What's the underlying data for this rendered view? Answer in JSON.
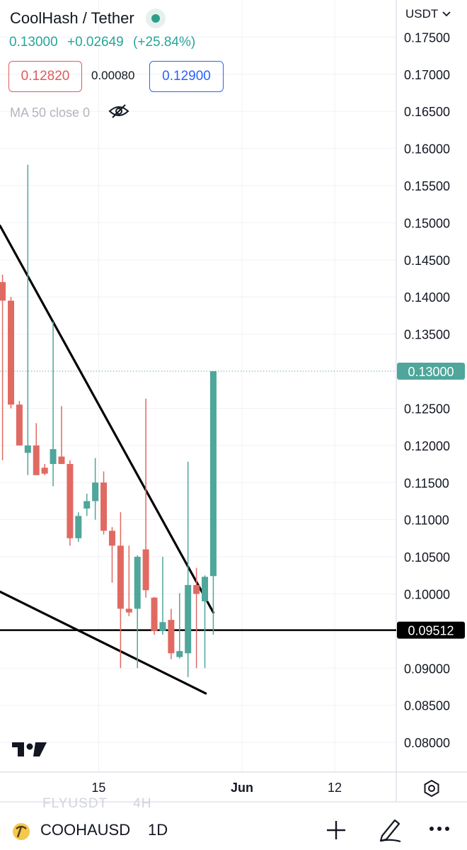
{
  "header": {
    "symbol_title": "CoolHash / Tether",
    "last_price": "0.13000",
    "change": "+0.02649",
    "change_pct": "(+25.84%)",
    "sell_price": "0.12820",
    "spread": "0.00080",
    "buy_price": "0.12900",
    "indicator": "MA 50 close 0"
  },
  "axis": {
    "currency": "USDT"
  },
  "watermark": {
    "symbol": "FLYUSDT",
    "timeframe": "4H"
  },
  "bottom_bar": {
    "symbol": "COOHAUSDT",
    "timeframe": "1D"
  },
  "colors": {
    "up": "#4fa69a",
    "down": "#e06a62",
    "accent": "#2962ff",
    "sell": "#e05a5a"
  },
  "icons": [
    "live-status-icon",
    "eye-hidden-icon",
    "chevron-down-icon",
    "tradingview-logo-icon",
    "settings-gear-icon",
    "pickaxe-icon",
    "plus-icon",
    "pencil-icon",
    "more-icon"
  ],
  "chart_data": {
    "type": "candlestick",
    "y_ticks": [
      0.175,
      0.17,
      0.165,
      0.16,
      0.155,
      0.15,
      0.145,
      0.14,
      0.135,
      0.13,
      0.125,
      0.12,
      0.115,
      0.11,
      0.105,
      0.1,
      0.09,
      0.085,
      0.08
    ],
    "ylim": [
      0.076,
      0.18
    ],
    "x_tick_labels": [
      "15",
      "Jun",
      "12"
    ],
    "x_tick_days": [
      15,
      32,
      43
    ],
    "xlim_days": [
      3.3,
      50.3
    ],
    "grid": true,
    "last_price_label": "0.13000",
    "hline_label": "0.09512",
    "hline_value": 0.09512,
    "candles": [
      {
        "day": 3.6,
        "o": 0.142,
        "h": 0.143,
        "l": 0.118,
        "c": 0.1395
      },
      {
        "day": 4.6,
        "o": 0.1395,
        "h": 0.14,
        "l": 0.125,
        "c": 0.1255
      },
      {
        "day": 5.6,
        "o": 0.1255,
        "h": 0.126,
        "l": 0.12,
        "c": 0.12
      },
      {
        "day": 6.6,
        "o": 0.119,
        "h": 0.1578,
        "l": 0.116,
        "c": 0.12
      },
      {
        "day": 7.6,
        "o": 0.12,
        "h": 0.123,
        "l": 0.116,
        "c": 0.116
      },
      {
        "day": 8.6,
        "o": 0.117,
        "h": 0.1175,
        "l": 0.116,
        "c": 0.1162
      },
      {
        "day": 9.6,
        "o": 0.1175,
        "h": 0.1367,
        "l": 0.1145,
        "c": 0.1195
      },
      {
        "day": 10.6,
        "o": 0.1185,
        "h": 0.1253,
        "l": 0.1175,
        "c": 0.1175
      },
      {
        "day": 11.6,
        "o": 0.1175,
        "h": 0.118,
        "l": 0.1065,
        "c": 0.1075
      },
      {
        "day": 12.6,
        "o": 0.1075,
        "h": 0.111,
        "l": 0.107,
        "c": 0.1105
      },
      {
        "day": 13.6,
        "o": 0.1115,
        "h": 0.1135,
        "l": 0.1105,
        "c": 0.1125
      },
      {
        "day": 14.6,
        "o": 0.1125,
        "h": 0.1183,
        "l": 0.11,
        "c": 0.115
      },
      {
        "day": 15.6,
        "o": 0.115,
        "h": 0.1165,
        "l": 0.108,
        "c": 0.1085
      },
      {
        "day": 16.6,
        "o": 0.1085,
        "h": 0.109,
        "l": 0.1015,
        "c": 0.1065
      },
      {
        "day": 17.6,
        "o": 0.1065,
        "h": 0.111,
        "l": 0.09,
        "c": 0.098
      },
      {
        "day": 18.6,
        "o": 0.098,
        "h": 0.1065,
        "l": 0.097,
        "c": 0.0975
      },
      {
        "day": 19.6,
        "o": 0.098,
        "h": 0.1052,
        "l": 0.09,
        "c": 0.105
      },
      {
        "day": 20.6,
        "o": 0.106,
        "h": 0.1263,
        "l": 0.0995,
        "c": 0.1005
      },
      {
        "day": 21.6,
        "o": 0.0995,
        "h": 0.0996,
        "l": 0.0945,
        "c": 0.095
      },
      {
        "day": 22.6,
        "o": 0.095,
        "h": 0.105,
        "l": 0.0945,
        "c": 0.0962
      },
      {
        "day": 23.6,
        "o": 0.0965,
        "h": 0.098,
        "l": 0.0912,
        "c": 0.092
      },
      {
        "day": 24.6,
        "o": 0.0915,
        "h": 0.1001,
        "l": 0.0913,
        "c": 0.0923
      },
      {
        "day": 25.6,
        "o": 0.092,
        "h": 0.1178,
        "l": 0.0888,
        "c": 0.1012
      },
      {
        "day": 26.6,
        "o": 0.1012,
        "h": 0.1035,
        "l": 0.09,
        "c": 0.1
      },
      {
        "day": 27.6,
        "o": 0.099,
        "h": 0.1025,
        "l": 0.09,
        "c": 0.1023
      },
      {
        "day": 28.6,
        "o": 0.1024,
        "h": 0.13,
        "l": 0.0945,
        "c": 0.13
      }
    ],
    "trendlines": [
      {
        "name": "upper",
        "p1": {
          "day": 3.3,
          "v": 0.1496
        },
        "p2": {
          "day": 28.6,
          "v": 0.0975
        }
      },
      {
        "name": "lower",
        "p1": {
          "day": 3.3,
          "v": 0.1003
        },
        "p2": {
          "day": 27.7,
          "v": 0.0866
        }
      }
    ]
  }
}
